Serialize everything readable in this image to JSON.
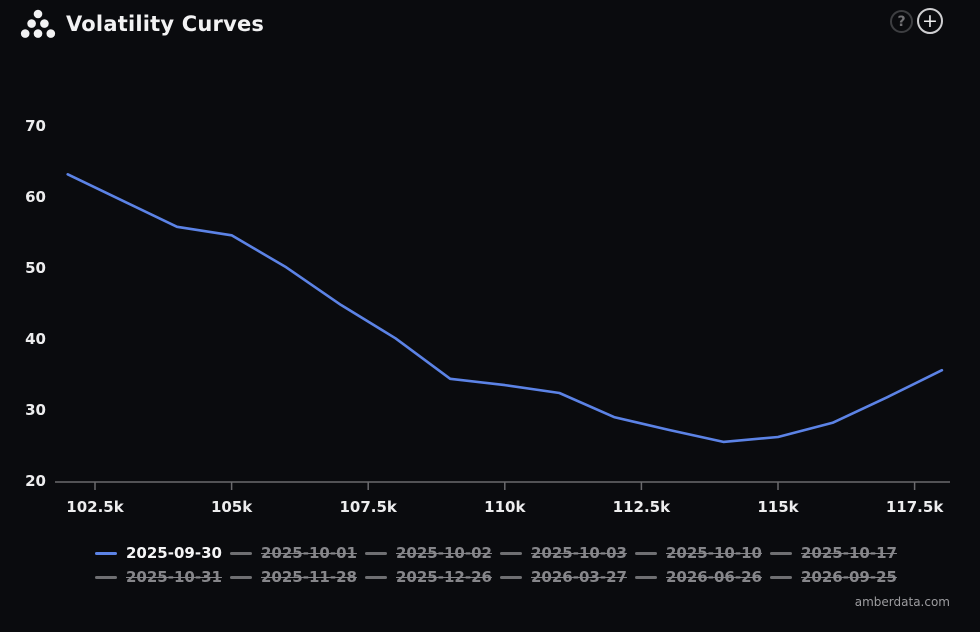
{
  "header": {
    "title": "Volatility Curves",
    "help_glyph": "?",
    "add_glyph": "+"
  },
  "chart_data": {
    "type": "line",
    "title": "Volatility Curves",
    "xlabel": "",
    "ylabel": "",
    "grid": false,
    "legend_position": "bottom",
    "xlim_strike_k": [
      101.8,
      118.2
    ],
    "ylim": [
      20,
      75
    ],
    "yticks": [
      70,
      60,
      50,
      40,
      30,
      20
    ],
    "xticks": {
      "labels": [
        "102.5k",
        "105k",
        "107.5k",
        "110k",
        "112.5k",
        "115k",
        "117.5k"
      ],
      "values_k": [
        102.5,
        105,
        107.5,
        110,
        112.5,
        115,
        117.5
      ]
    },
    "series": [
      {
        "name": "2025-09-30",
        "x_strike_k": [
          102,
          103,
          104,
          105,
          106,
          107,
          108,
          109,
          110,
          111,
          112,
          113,
          114,
          115,
          116,
          117,
          118
        ],
        "values": [
          63.2,
          59.5,
          55.8,
          54.6,
          50.1,
          44.8,
          40.1,
          34.4,
          33.5,
          32.4,
          29.0,
          27.2,
          25.5,
          26.2,
          28.2,
          31.8,
          35.6
        ]
      }
    ]
  },
  "legend": {
    "items": [
      {
        "label": "2025-09-30",
        "active": true
      },
      {
        "label": "2025-10-01",
        "active": false
      },
      {
        "label": "2025-10-02",
        "active": false
      },
      {
        "label": "2025-10-03",
        "active": false
      },
      {
        "label": "2025-10-10",
        "active": false
      },
      {
        "label": "2025-10-17",
        "active": false
      },
      {
        "label": "2025-10-31",
        "active": false
      },
      {
        "label": "2025-11-28",
        "active": false
      },
      {
        "label": "2025-12-26",
        "active": false
      },
      {
        "label": "2026-03-27",
        "active": false
      },
      {
        "label": "2026-06-26",
        "active": false
      },
      {
        "label": "2026-09-25",
        "active": false
      }
    ]
  },
  "colors": {
    "background": "#0a0b0e",
    "line": "#5c83e6",
    "axis": "#6a6a6d",
    "tick_label": "#ededee",
    "inactive_legend": "#86868a",
    "title": "#f2f2f3"
  },
  "watermark": "amberdata.com"
}
